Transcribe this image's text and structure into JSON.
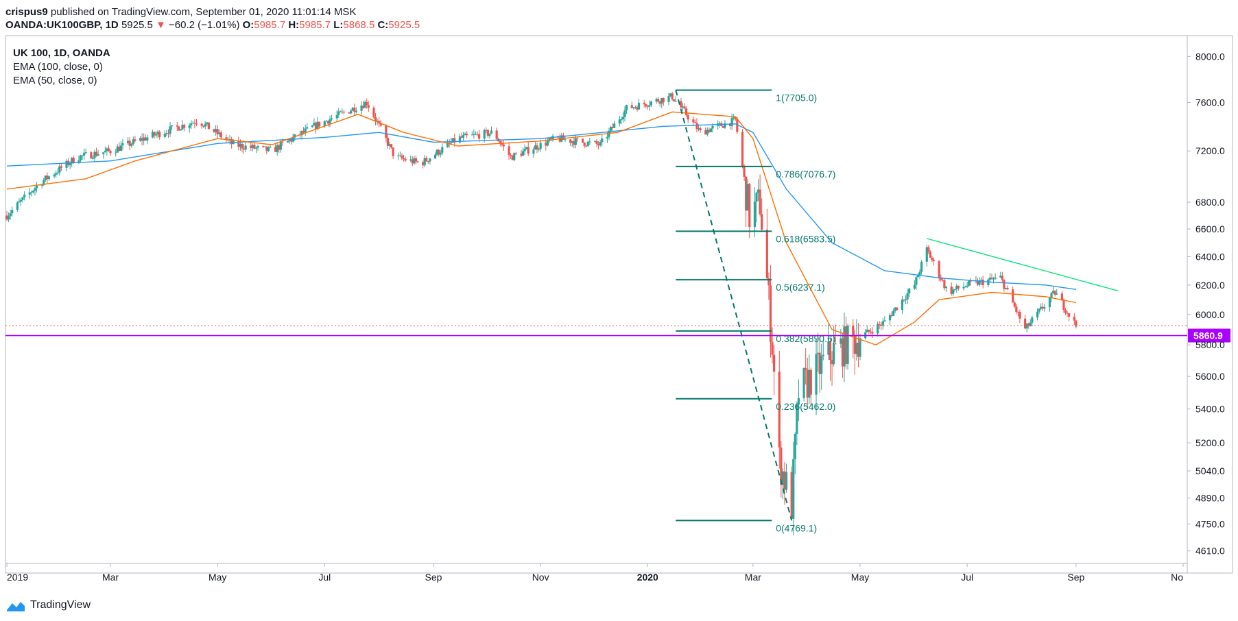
{
  "header": {
    "author": "crispus9",
    "published_text": "published on TradingView.com, September 01, 2020 11:01:14 MSK"
  },
  "quote": {
    "symbol": "OANDA:UK100GBP, 1D",
    "last": "5925.5",
    "arrow": "▼",
    "change": "−60.2 (−1.01%)",
    "open_label": "O:",
    "open": "5985.7",
    "high_label": "H:",
    "high": "5985.7",
    "low_label": "L:",
    "low": "5868.5",
    "close_label": "C:",
    "close": "5925.5"
  },
  "legend": {
    "title": "UK 100, 1D, OANDA",
    "ema100": "EMA (100, close, 0)",
    "ema50": "EMA (50, close, 0)"
  },
  "footer": {
    "brand": "TradingView"
  },
  "colors": {
    "up": "#26a69a",
    "down": "#ef5350",
    "ema100": "#2196f3",
    "ema50": "#ff6d00",
    "fib": "#00796b",
    "trendline": "#00e676",
    "support": "#aa00ff",
    "grid_axis": "#b2b5be"
  },
  "chart_data": {
    "type": "candlestick",
    "title": "UK 100, 1D, OANDA",
    "x_tick_labels": [
      "2019",
      "Mar",
      "May",
      "Jul",
      "Sep",
      "Nov",
      "2020",
      "Mar",
      "May",
      "Jul",
      "Sep",
      "No"
    ],
    "y_tick_labels": [
      "8000.0",
      "7600.0",
      "7200.0",
      "6800.0",
      "6600.0",
      "6400.0",
      "6200.0",
      "6000.0",
      "5800.0",
      "5600.0",
      "5400.0",
      "5200.0",
      "5040.0",
      "4890.0",
      "4750.0",
      "4610.0"
    ],
    "y_scale": "log",
    "ylim": [
      4560,
      8150
    ],
    "price_path": [
      [
        "2019-01-01",
        6700
      ],
      [
        "2019-01-20",
        6950
      ],
      [
        "2019-02-10",
        7150
      ],
      [
        "2019-03-01",
        7200
      ],
      [
        "2019-03-20",
        7300
      ],
      [
        "2019-04-20",
        7450
      ],
      [
        "2019-05-10",
        7250
      ],
      [
        "2019-06-01",
        7200
      ],
      [
        "2019-06-25",
        7400
      ],
      [
        "2019-07-25",
        7600
      ],
      [
        "2019-08-10",
        7150
      ],
      [
        "2019-08-25",
        7100
      ],
      [
        "2019-09-15",
        7300
      ],
      [
        "2019-10-05",
        7350
      ],
      [
        "2019-10-15",
        7150
      ],
      [
        "2019-11-10",
        7300
      ],
      [
        "2019-12-05",
        7250
      ],
      [
        "2019-12-20",
        7550
      ],
      [
        "2020-01-15",
        7650
      ],
      [
        "2020-01-31",
        7350
      ],
      [
        "2020-02-20",
        7450
      ],
      [
        "2020-02-28",
        6700
      ],
      [
        "2020-03-05",
        6800
      ],
      [
        "2020-03-12",
        5800
      ],
      [
        "2020-03-16",
        5100
      ],
      [
        "2020-03-23",
        4850
      ],
      [
        "2020-03-27",
        5500
      ],
      [
        "2020-04-15",
        5750
      ],
      [
        "2020-05-01",
        5850
      ],
      [
        "2020-05-15",
        5950
      ],
      [
        "2020-06-01",
        6200
      ],
      [
        "2020-06-08",
        6450
      ],
      [
        "2020-06-20",
        6150
      ],
      [
        "2020-07-01",
        6200
      ],
      [
        "2020-07-20",
        6250
      ],
      [
        "2020-08-03",
        5900
      ],
      [
        "2020-08-20",
        6150
      ],
      [
        "2020-09-01",
        5925
      ]
    ],
    "series": [
      {
        "name": "EMA (100, close, 0)",
        "type": "line",
        "points": [
          [
            "2019-01-01",
            7080
          ],
          [
            "2019-03-01",
            7120
          ],
          [
            "2019-05-01",
            7260
          ],
          [
            "2019-07-01",
            7310
          ],
          [
            "2019-08-01",
            7350
          ],
          [
            "2019-09-01",
            7270
          ],
          [
            "2019-11-01",
            7300
          ],
          [
            "2020-01-10",
            7400
          ],
          [
            "2020-02-20",
            7420
          ],
          [
            "2020-03-01",
            7350
          ],
          [
            "2020-03-20",
            6900
          ],
          [
            "2020-04-15",
            6500
          ],
          [
            "2020-05-15",
            6300
          ],
          [
            "2020-06-15",
            6250
          ],
          [
            "2020-07-15",
            6220
          ],
          [
            "2020-08-15",
            6200
          ],
          [
            "2020-09-01",
            6170
          ]
        ]
      },
      {
        "name": "EMA (50, close, 0)",
        "type": "line",
        "points": [
          [
            "2019-01-01",
            6900
          ],
          [
            "2019-02-15",
            6980
          ],
          [
            "2019-03-15",
            7120
          ],
          [
            "2019-05-01",
            7300
          ],
          [
            "2019-06-01",
            7250
          ],
          [
            "2019-07-20",
            7500
          ],
          [
            "2019-08-15",
            7350
          ],
          [
            "2019-09-15",
            7240
          ],
          [
            "2019-11-01",
            7280
          ],
          [
            "2019-12-15",
            7350
          ],
          [
            "2020-01-15",
            7520
          ],
          [
            "2020-02-20",
            7480
          ],
          [
            "2020-03-01",
            7300
          ],
          [
            "2020-03-20",
            6500
          ],
          [
            "2020-04-15",
            5900
          ],
          [
            "2020-05-10",
            5800
          ],
          [
            "2020-06-01",
            5950
          ],
          [
            "2020-06-15",
            6100
          ],
          [
            "2020-07-15",
            6150
          ],
          [
            "2020-08-15",
            6120
          ],
          [
            "2020-09-01",
            6080
          ]
        ]
      },
      {
        "name": "",
        "type": "trendline",
        "points": [
          [
            "2020-06-08",
            6530
          ],
          [
            "2020-09-25",
            6160
          ]
        ]
      }
    ],
    "fibonacci": {
      "start": [
        "2020-01-17",
        7705.0
      ],
      "end": [
        "2020-03-23",
        4769.1
      ],
      "levels": [
        {
          "ratio": 1,
          "value": 7705.0,
          "label": "1(7705.0)"
        },
        {
          "ratio": 0.786,
          "value": 7076.7,
          "label": "0.786(7076.7)"
        },
        {
          "ratio": 0.618,
          "value": 6583.5,
          "label": "0.618(6583.5)"
        },
        {
          "ratio": 0.5,
          "value": 6237.1,
          "label": "0.5(6237.1)"
        },
        {
          "ratio": 0.382,
          "value": 5890.6,
          "label": "0.382(5890.6)"
        },
        {
          "ratio": 0.236,
          "value": 5462.0,
          "label": "0.236(5462.0)"
        },
        {
          "ratio": 0,
          "value": 4769.1,
          "label": "0(4769.1)"
        }
      ]
    },
    "horizontal_lines": [
      {
        "value": 5860.9,
        "label": "5860.9",
        "style": "solid"
      },
      {
        "value": 5925.5,
        "style": "dotted"
      }
    ],
    "grid": false,
    "legend_position": "top-left"
  }
}
